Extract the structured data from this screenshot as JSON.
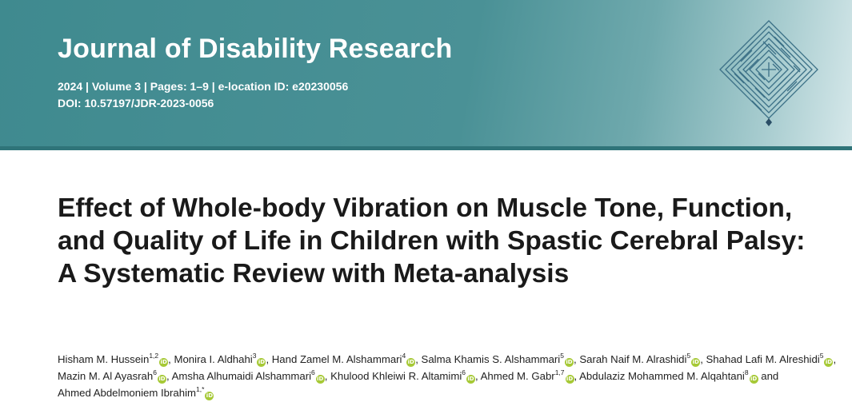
{
  "header": {
    "journal_title": "Journal of Disability Research",
    "meta_line": "2024 | Volume 3 | Pages: 1–9 | e-location ID: e20230056",
    "doi_line": "DOI: 10.57197/JDR-2023-0056",
    "colors": {
      "band": "#4a9196",
      "rule": "#2f7479",
      "orcid": "#a6c936"
    },
    "logo_icon": "maze-diamond-logo"
  },
  "article": {
    "title": "Effect of Whole-body Vibration on Muscle Tone, Function, and Quality of Life in Children with Spastic Cerebral Palsy: A Systematic Review with Meta-analysis"
  },
  "authors": [
    {
      "name": "Hisham M. Hussein",
      "aff": "1,2",
      "sep": ", "
    },
    {
      "name": "Monira I. Aldhahi",
      "aff": "3",
      "sep": ", "
    },
    {
      "name": "Hand Zamel M. Alshammari",
      "aff": "4",
      "sep": ", "
    },
    {
      "name": "Salma Khamis S. Alshammari",
      "aff": "5",
      "sep": ", "
    },
    {
      "name": "Sarah Naif M. Alrashidi",
      "aff": "5",
      "sep": ", "
    },
    {
      "name": "Shahad Lafi M. Alreshidi",
      "aff": "5",
      "sep": ", "
    },
    {
      "name": "Mazin M. Al Ayasrah",
      "aff": "6",
      "sep": ", "
    },
    {
      "name": "Amsha Alhumaidi Alshammari",
      "aff": "6",
      "sep": ", "
    },
    {
      "name": "Khulood Khleiwi R. Altamimi",
      "aff": "6",
      "sep": ", "
    },
    {
      "name": "Ahmed M. Gabr",
      "aff": "1,7",
      "sep": ", "
    },
    {
      "name": "Abdulaziz Mohammed M. Alqahtani",
      "aff": "8",
      "sep": " and "
    },
    {
      "name": "Ahmed Abdelmoniem Ibrahim",
      "aff": "1,*",
      "sep": ""
    }
  ]
}
